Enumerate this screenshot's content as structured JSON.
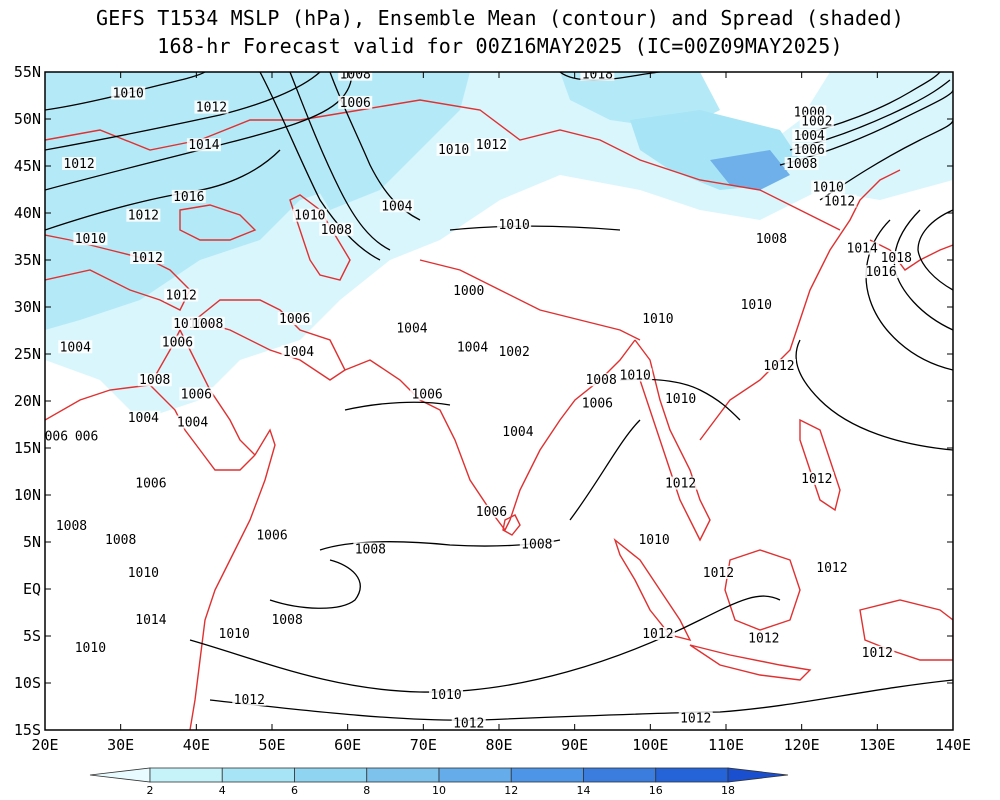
{
  "title": {
    "line1": "GEFS T1534 MSLP (hPa), Ensemble Mean (contour) and Spread (shaded)",
    "line2": "168-hr Forecast valid for 00Z16MAY2025 (IC=00Z09MAY2025)"
  },
  "axes": {
    "lat_ticks": [
      "55N",
      "50N",
      "45N",
      "40N",
      "35N",
      "30N",
      "25N",
      "20N",
      "15N",
      "10N",
      "5N",
      "EQ",
      "5S",
      "10S",
      "15S"
    ],
    "lon_ticks": [
      "20E",
      "30E",
      "40E",
      "50E",
      "60E",
      "70E",
      "80E",
      "90E",
      "100E",
      "110E",
      "120E",
      "130E",
      "140E"
    ]
  },
  "colorbar": {
    "labels": [
      "2",
      "4",
      "6",
      "8",
      "10",
      "12",
      "14",
      "16",
      "18"
    ],
    "colors": [
      "#e8fbff",
      "#c6f2fa",
      "#a7e4f5",
      "#8fd4f0",
      "#7cc2ec",
      "#64acea",
      "#4d95e6",
      "#3a7ddf",
      "#2563d8",
      "#1a50d0"
    ]
  },
  "colors": {
    "coastline": "#e03030",
    "contour": "#000000",
    "spread_light": "#d9f6fd",
    "spread_mid": "#b4eaf7",
    "spread_deep": "#6fb0ea"
  },
  "contour_labels": [
    {
      "text": "1010",
      "lon": 31,
      "lat": 52.5
    },
    {
      "text": "1008",
      "lon": 61,
      "lat": 54.5
    },
    {
      "text": "1006",
      "lon": 61,
      "lat": 51.5
    },
    {
      "text": "1018",
      "lon": 93,
      "lat": 54.5
    },
    {
      "text": "1012",
      "lon": 42,
      "lat": 51
    },
    {
      "text": "1014",
      "lon": 41,
      "lat": 47
    },
    {
      "text": "1012",
      "lon": 24.5,
      "lat": 45
    },
    {
      "text": "1010",
      "lon": 74,
      "lat": 46.5
    },
    {
      "text": "1012",
      "lon": 79,
      "lat": 47
    },
    {
      "text": "1016",
      "lon": 39,
      "lat": 41.5
    },
    {
      "text": "1012",
      "lon": 33,
      "lat": 39.5
    },
    {
      "text": "1010",
      "lon": 26,
      "lat": 37
    },
    {
      "text": "1010",
      "lon": 55,
      "lat": 39.5
    },
    {
      "text": "1008",
      "lon": 58.5,
      "lat": 38
    },
    {
      "text": "1004",
      "lon": 66.5,
      "lat": 40.5
    },
    {
      "text": "1010",
      "lon": 82,
      "lat": 38.5
    },
    {
      "text": "1012",
      "lon": 33.5,
      "lat": 35
    },
    {
      "text": "1012",
      "lon": 38,
      "lat": 31
    },
    {
      "text": "1010",
      "lon": 39,
      "lat": 28
    },
    {
      "text": "1008",
      "lon": 41.5,
      "lat": 28
    },
    {
      "text": "1006",
      "lon": 37.5,
      "lat": 26
    },
    {
      "text": "1004",
      "lon": 24,
      "lat": 25.5
    },
    {
      "text": "1006",
      "lon": 53,
      "lat": 28.5
    },
    {
      "text": "1004",
      "lon": 53.5,
      "lat": 25
    },
    {
      "text": "1000",
      "lon": 76,
      "lat": 31.5
    },
    {
      "text": "1004",
      "lon": 68.5,
      "lat": 27.5
    },
    {
      "text": "1004",
      "lon": 76.5,
      "lat": 25.5
    },
    {
      "text": "1002",
      "lon": 82,
      "lat": 25
    },
    {
      "text": "1008",
      "lon": 34.5,
      "lat": 22
    },
    {
      "text": "1006",
      "lon": 40,
      "lat": 20.5
    },
    {
      "text": "1004",
      "lon": 33,
      "lat": 18
    },
    {
      "text": "1004",
      "lon": 39.5,
      "lat": 17.5
    },
    {
      "text": "1006",
      "lon": 70.5,
      "lat": 20.5
    },
    {
      "text": "1008",
      "lon": 93.5,
      "lat": 22
    },
    {
      "text": "1006",
      "lon": 93,
      "lat": 19.5
    },
    {
      "text": "1004",
      "lon": 82.5,
      "lat": 16.5
    },
    {
      "text": "1010",
      "lon": 104,
      "lat": 20
    },
    {
      "text": "1010",
      "lon": 98,
      "lat": 22.5
    },
    {
      "text": "006",
      "lon": 21.5,
      "lat": 16
    },
    {
      "text": "006",
      "lon": 25.5,
      "lat": 16
    },
    {
      "text": "1006",
      "lon": 34,
      "lat": 11
    },
    {
      "text": "1012",
      "lon": 104,
      "lat": 11
    },
    {
      "text": "1006",
      "lon": 79,
      "lat": 8
    },
    {
      "text": "1008",
      "lon": 23.5,
      "lat": 6.5
    },
    {
      "text": "1006",
      "lon": 50,
      "lat": 5.5
    },
    {
      "text": "1008",
      "lon": 30,
      "lat": 5
    },
    {
      "text": "1008",
      "lon": 63,
      "lat": 4
    },
    {
      "text": "1008",
      "lon": 85,
      "lat": 4.5
    },
    {
      "text": "1010",
      "lon": 100.5,
      "lat": 5
    },
    {
      "text": "1010",
      "lon": 33,
      "lat": 1.5
    },
    {
      "text": "1012",
      "lon": 109,
      "lat": 1.5
    },
    {
      "text": "1012",
      "lon": 124,
      "lat": 2
    },
    {
      "text": "1008",
      "lon": 52,
      "lat": -3.5
    },
    {
      "text": "1014",
      "lon": 34,
      "lat": -3.5
    },
    {
      "text": "1010",
      "lon": 45,
      "lat": -5
    },
    {
      "text": "1010",
      "lon": 26,
      "lat": -6.5
    },
    {
      "text": "1012",
      "lon": 101,
      "lat": -5
    },
    {
      "text": "1012",
      "lon": 115,
      "lat": -5.5
    },
    {
      "text": "1012",
      "lon": 130,
      "lat": -7
    },
    {
      "text": "1010",
      "lon": 73,
      "lat": -11.5
    },
    {
      "text": "1012",
      "lon": 47,
      "lat": -12
    },
    {
      "text": "1012",
      "lon": 76,
      "lat": -14.5
    },
    {
      "text": "1012",
      "lon": 106,
      "lat": -14
    },
    {
      "text": "1000",
      "lon": 121,
      "lat": 50.5
    },
    {
      "text": "1002",
      "lon": 122,
      "lat": 49.5
    },
    {
      "text": "1004",
      "lon": 121,
      "lat": 48
    },
    {
      "text": "1006",
      "lon": 121,
      "lat": 46.5
    },
    {
      "text": "1008",
      "lon": 120,
      "lat": 45
    },
    {
      "text": "1010",
      "lon": 123.5,
      "lat": 42.5
    },
    {
      "text": "1012",
      "lon": 125,
      "lat": 41
    },
    {
      "text": "1008",
      "lon": 116,
      "lat": 37
    },
    {
      "text": "1014",
      "lon": 128,
      "lat": 36
    },
    {
      "text": "1018",
      "lon": 132.5,
      "lat": 35
    },
    {
      "text": "1016",
      "lon": 130.5,
      "lat": 33.5
    },
    {
      "text": "1010",
      "lon": 114,
      "lat": 30
    },
    {
      "text": "1010",
      "lon": 101,
      "lat": 28.5
    },
    {
      "text": "1012",
      "lon": 117,
      "lat": 23.5
    },
    {
      "text": "1012",
      "lon": 122,
      "lat": 11.5
    }
  ]
}
